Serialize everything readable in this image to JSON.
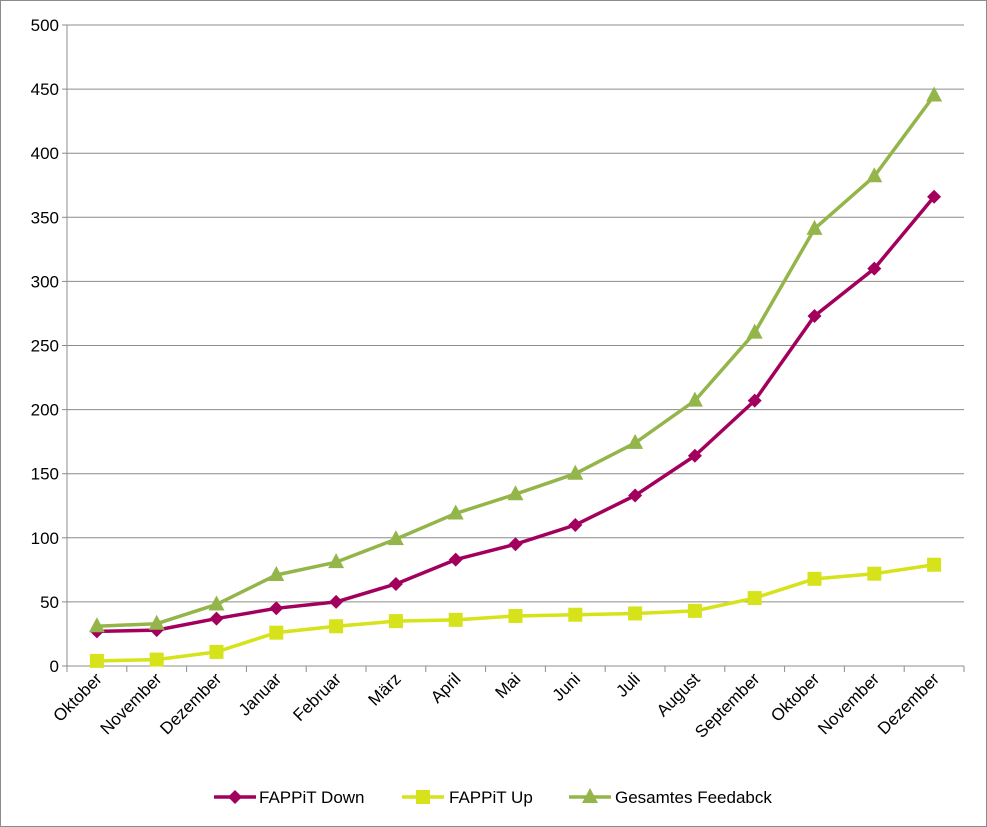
{
  "chart_data": {
    "type": "line",
    "categories": [
      "Oktober",
      "November",
      "Dezember",
      "Januar",
      "Februar",
      "März",
      "April",
      "Mai",
      "Juni",
      "Juli",
      "August",
      "September",
      "Oktober",
      "November",
      "Dezember"
    ],
    "ylim": [
      0,
      500
    ],
    "yticks": [
      0,
      50,
      100,
      150,
      200,
      250,
      300,
      350,
      400,
      450,
      500
    ],
    "grid": "horizontal",
    "legend_position": "bottom",
    "series": [
      {
        "name": "FAPPiT Down",
        "color": "#A3005E",
        "marker": "diamond",
        "values": [
          27,
          28,
          37,
          45,
          50,
          64,
          83,
          95,
          110,
          133,
          164,
          207,
          273,
          310,
          366
        ]
      },
      {
        "name": "FAPPiT Up",
        "color": "#D6E21A",
        "marker": "square",
        "values": [
          4,
          5,
          11,
          26,
          31,
          35,
          36,
          39,
          40,
          41,
          43,
          53,
          68,
          72,
          79
        ]
      },
      {
        "name": "Gesamtes Feedabck",
        "color": "#93B54A",
        "marker": "triangle",
        "values": [
          31,
          33,
          48,
          71,
          81,
          99,
          119,
          134,
          150,
          174,
          207,
          260,
          341,
          382,
          445
        ]
      }
    ]
  }
}
